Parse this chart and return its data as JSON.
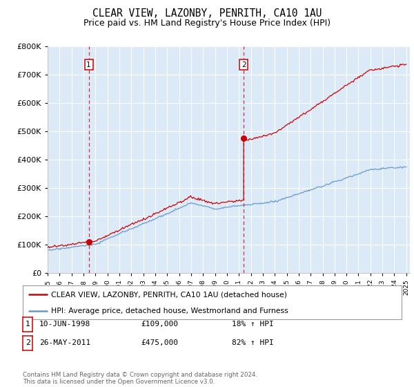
{
  "title": "CLEAR VIEW, LAZONBY, PENRITH, CA10 1AU",
  "subtitle": "Price paid vs. HM Land Registry's House Price Index (HPI)",
  "title_fontsize": 10.5,
  "subtitle_fontsize": 9,
  "plot_bg_color": "#dce9f7",
  "ylim": [
    0,
    800000
  ],
  "xlim_start": 1995.0,
  "xlim_end": 2025.3,
  "sale1_date": 1998.44,
  "sale1_price": 109000,
  "sale2_date": 2011.4,
  "sale2_price": 475000,
  "legend_line1": "CLEAR VIEW, LAZONBY, PENRITH, CA10 1AU (detached house)",
  "legend_line2": "HPI: Average price, detached house, Westmorland and Furness",
  "table_row1": [
    "1",
    "10-JUN-1998",
    "£109,000",
    "18% ↑ HPI"
  ],
  "table_row2": [
    "2",
    "26-MAY-2011",
    "£475,000",
    "82% ↑ HPI"
  ],
  "footer": "Contains HM Land Registry data © Crown copyright and database right 2024.\nThis data is licensed under the Open Government Licence v3.0.",
  "red_color": "#cc0000",
  "blue_color": "#6699cc",
  "grid_color": "#ffffff",
  "spine_color": "#aaaaaa"
}
